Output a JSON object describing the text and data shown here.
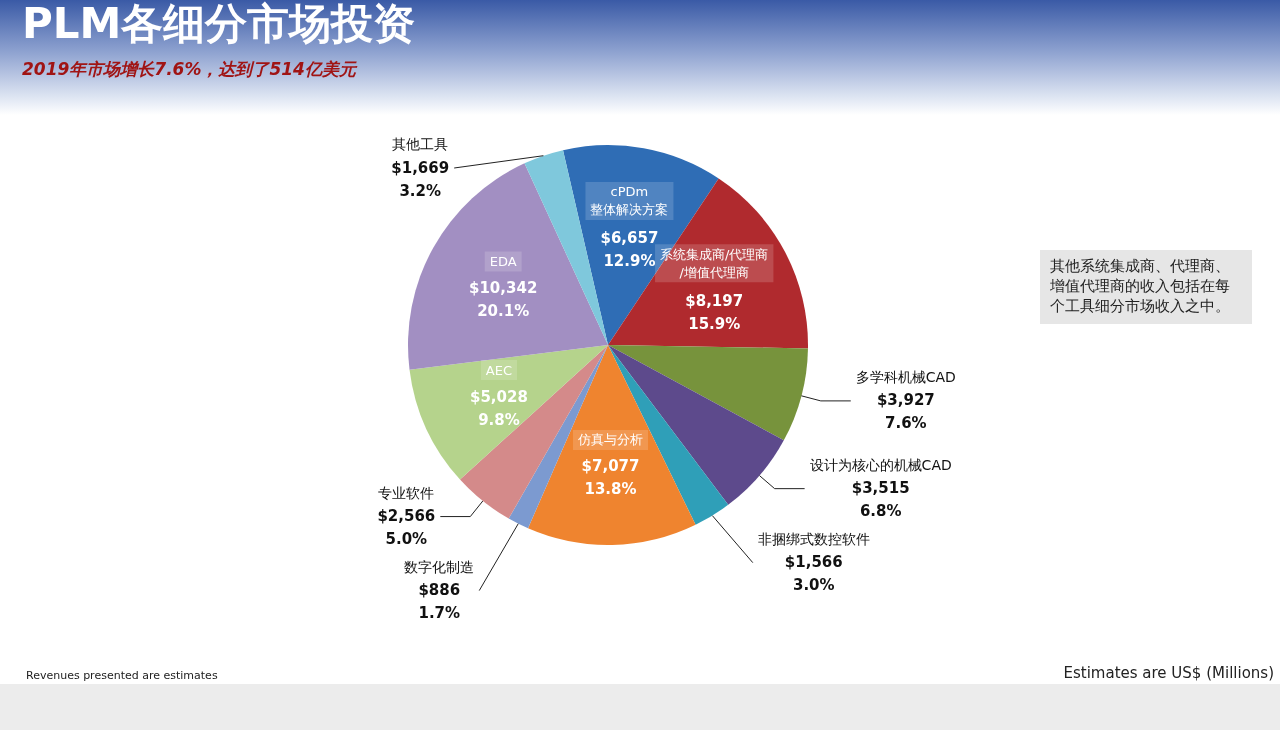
{
  "chart_data": {
    "type": "pie",
    "title": "PLM各细分市场投资",
    "subtitle": "2019年市场增长7.6%，达到了514亿美元",
    "categories": [
      "cPDm整体解决方案",
      "系统集成商/代理商/增值代理商",
      "多学科机械CAD",
      "设计为核心的机械CAD",
      "非捆绑式数控软件",
      "仿真与分析",
      "数字化制造",
      "专业软件",
      "AEC",
      "EDA",
      "其他工具"
    ],
    "values": [
      6657,
      8197,
      3927,
      3515,
      1566,
      7077,
      886,
      2566,
      5028,
      10342,
      1669
    ],
    "value_labels": [
      "$6,657\n12.9%",
      "$8,197\n15.9%",
      "$3,927\n7.6%",
      "$3,515\n6.8%",
      "$1,566\n3.0%",
      "$7,077\n13.8%",
      "$886\n1.7%",
      "$2,566\n5.0%",
      "$5,028\n9.8%",
      "$10,342\n20.1%",
      "$1,669\n3.2%"
    ],
    "colors": [
      "#2f6db5",
      "#b02a2e",
      "#77933c",
      "#5d4a8c",
      "#2f9fb8",
      "#ef842f",
      "#7c9ad0",
      "#d48a8a",
      "#b5d38c",
      "#a28fc2",
      "#7fc8dc"
    ],
    "annotations": [
      "其他系统集成商、代理商、增值代理商的收入包括在每个工具细分市场收入之中。",
      "Revenues presented are estimates",
      "Estimates are US$ (Millions)"
    ]
  }
}
